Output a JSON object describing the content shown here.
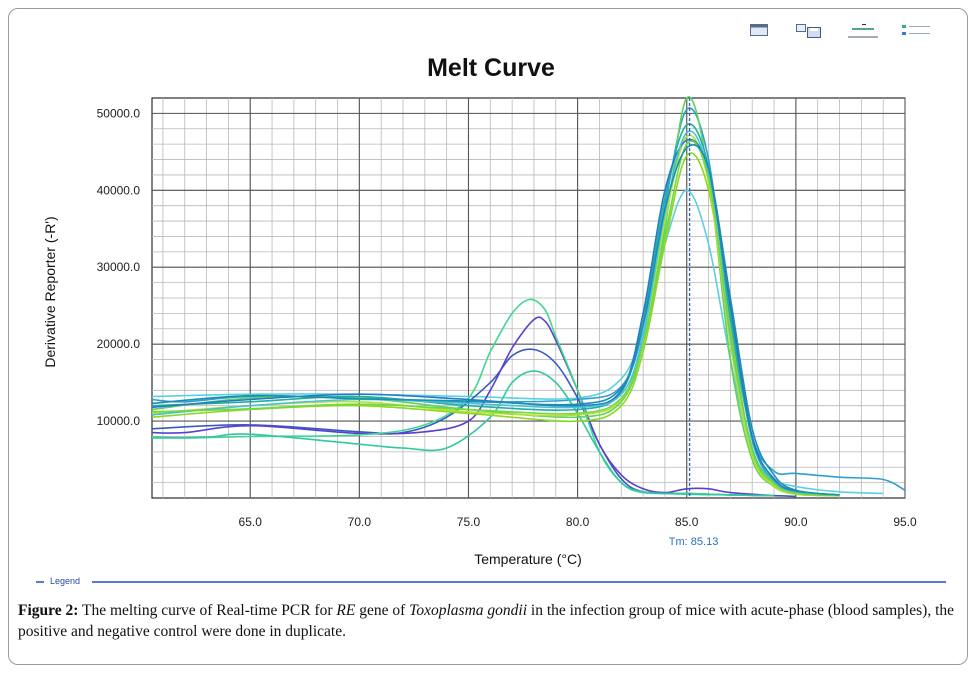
{
  "toolbar": {
    "icons": [
      "window-icon",
      "save-icon",
      "chart-options-icon",
      "legend-toggle-icon"
    ]
  },
  "chart_data": {
    "type": "line",
    "title": "Melt Curve",
    "xlabel": "Temperature (°C)",
    "ylabel": "Derivative Reporter (-R')",
    "xlim": [
      60.5,
      95.0
    ],
    "ylim": [
      0,
      52000
    ],
    "x_ticks": [
      "65.0",
      "70.0",
      "75.0",
      "80.0",
      "85.0",
      "90.0",
      "95.0"
    ],
    "y_ticks": [
      "10000.0",
      "20000.0",
      "30000.0",
      "40000.0",
      "50000.0"
    ],
    "grid": true,
    "annotation": {
      "label": "Tm: 85.13",
      "x": 85.13
    },
    "series": [
      {
        "color": "#2f9fd0",
        "points": [
          [
            60.5,
            12800
          ],
          [
            62,
            12500
          ],
          [
            65,
            13200
          ],
          [
            70,
            13000
          ],
          [
            75,
            12500
          ],
          [
            80,
            12800
          ],
          [
            82,
            14500
          ],
          [
            83,
            22000
          ],
          [
            84,
            38000
          ],
          [
            85,
            50500
          ],
          [
            86,
            44000
          ],
          [
            87,
            23000
          ],
          [
            88,
            8000
          ],
          [
            89,
            3500
          ],
          [
            90,
            3200
          ],
          [
            92,
            2700
          ],
          [
            94,
            2400
          ],
          [
            95,
            1000
          ]
        ]
      },
      {
        "color": "#5ad0e0",
        "points": [
          [
            60.5,
            13200
          ],
          [
            65,
            13500
          ],
          [
            70,
            13500
          ],
          [
            75,
            13200
          ],
          [
            80,
            13000
          ],
          [
            82,
            15500
          ],
          [
            83,
            22000
          ],
          [
            84,
            33000
          ],
          [
            85,
            40000
          ],
          [
            86,
            33000
          ],
          [
            87,
            18000
          ],
          [
            88,
            6000
          ],
          [
            89,
            2500
          ],
          [
            90,
            1500
          ],
          [
            92,
            800
          ],
          [
            94,
            600
          ]
        ]
      },
      {
        "color": "#3a5ac0",
        "points": [
          [
            60.5,
            9000
          ],
          [
            65,
            9500
          ],
          [
            70,
            8600
          ],
          [
            72,
            8500
          ],
          [
            74,
            10500
          ],
          [
            76,
            15000
          ],
          [
            77,
            18500
          ],
          [
            78,
            19300
          ],
          [
            79,
            17500
          ],
          [
            80,
            13000
          ],
          [
            81,
            7000
          ],
          [
            82,
            2500
          ],
          [
            83,
            800
          ],
          [
            85,
            600
          ],
          [
            87,
            400
          ],
          [
            89,
            300
          ],
          [
            90,
            200
          ]
        ]
      },
      {
        "color": "#5a40d0",
        "points": [
          [
            60.5,
            8500
          ],
          [
            62,
            8500
          ],
          [
            65,
            9400
          ],
          [
            70,
            8400
          ],
          [
            73,
            8600
          ],
          [
            75,
            10000
          ],
          [
            76,
            14000
          ],
          [
            77,
            19500
          ],
          [
            78,
            23200
          ],
          [
            78.5,
            23000
          ],
          [
            79,
            20500
          ],
          [
            80,
            14000
          ],
          [
            81,
            7000
          ],
          [
            82,
            3000
          ],
          [
            83,
            1200
          ],
          [
            84,
            700
          ],
          [
            85,
            1200
          ],
          [
            86,
            1200
          ],
          [
            87,
            700
          ],
          [
            89,
            300
          ]
        ]
      },
      {
        "color": "#40d890",
        "points": [
          [
            60.5,
            8000
          ],
          [
            62,
            7800
          ],
          [
            65,
            8000
          ],
          [
            70,
            8200
          ],
          [
            73,
            9500
          ],
          [
            75,
            13000
          ],
          [
            76,
            19000
          ],
          [
            77,
            24000
          ],
          [
            77.8,
            25800
          ],
          [
            78.5,
            24500
          ],
          [
            79,
            21000
          ],
          [
            80,
            14000
          ],
          [
            81,
            6000
          ],
          [
            82,
            2000
          ],
          [
            83,
            700
          ],
          [
            85,
            600
          ],
          [
            87,
            400
          ],
          [
            89,
            300
          ]
        ]
      },
      {
        "color": "#30c8a0",
        "points": [
          [
            60.5,
            7800
          ],
          [
            63,
            7900
          ],
          [
            65,
            8300
          ],
          [
            70,
            7000
          ],
          [
            72,
            6500
          ],
          [
            74,
            6500
          ],
          [
            76,
            10500
          ],
          [
            77,
            15000
          ],
          [
            78,
            16500
          ],
          [
            79,
            15000
          ],
          [
            80,
            11000
          ],
          [
            81,
            6000
          ],
          [
            82,
            2000
          ],
          [
            83,
            800
          ],
          [
            85,
            500
          ],
          [
            87,
            400
          ],
          [
            89,
            300
          ]
        ]
      },
      {
        "color": "#60d060",
        "points": [
          [
            60.5,
            11500
          ],
          [
            65,
            13000
          ],
          [
            70,
            13000
          ],
          [
            75,
            11500
          ],
          [
            80,
            10500
          ],
          [
            82,
            12500
          ],
          [
            83,
            20000
          ],
          [
            84,
            35000
          ],
          [
            85,
            52000
          ],
          [
            86,
            42000
          ],
          [
            87,
            18000
          ],
          [
            88,
            5000
          ],
          [
            89,
            1500
          ],
          [
            90,
            500
          ],
          [
            92,
            300
          ]
        ]
      },
      {
        "color": "#8ad820",
        "points": [
          [
            60.5,
            10500
          ],
          [
            65,
            11500
          ],
          [
            70,
            12000
          ],
          [
            75,
            11000
          ],
          [
            80,
            10000
          ],
          [
            82,
            12000
          ],
          [
            83,
            19000
          ],
          [
            84,
            33000
          ],
          [
            85,
            44500
          ],
          [
            86,
            40000
          ],
          [
            87,
            22000
          ],
          [
            88,
            6000
          ],
          [
            89,
            1800
          ],
          [
            90,
            600
          ],
          [
            92,
            300
          ]
        ]
      },
      {
        "color": "#b8e030",
        "points": [
          [
            60.5,
            11000
          ],
          [
            65,
            12000
          ],
          [
            70,
            12500
          ],
          [
            75,
            11200
          ],
          [
            80,
            10800
          ],
          [
            82,
            12800
          ],
          [
            83,
            20500
          ],
          [
            84,
            36000
          ],
          [
            85,
            47000
          ],
          [
            86,
            41000
          ],
          [
            87,
            20000
          ],
          [
            88,
            5500
          ],
          [
            89,
            1600
          ],
          [
            90,
            500
          ],
          [
            92,
            300
          ]
        ]
      },
      {
        "color": "#20b0a0",
        "points": [
          [
            60.5,
            12000
          ],
          [
            65,
            12500
          ],
          [
            70,
            13200
          ],
          [
            75,
            12000
          ],
          [
            80,
            11500
          ],
          [
            82,
            13800
          ],
          [
            83,
            23000
          ],
          [
            84,
            39000
          ],
          [
            85,
            48500
          ],
          [
            86,
            43000
          ],
          [
            87,
            24000
          ],
          [
            88,
            7500
          ],
          [
            89,
            2200
          ],
          [
            90,
            800
          ],
          [
            92,
            400
          ]
        ]
      },
      {
        "color": "#2878c8",
        "points": [
          [
            60.5,
            11800
          ],
          [
            65,
            12800
          ],
          [
            70,
            13500
          ],
          [
            75,
            12800
          ],
          [
            80,
            12000
          ],
          [
            82,
            14000
          ],
          [
            83,
            24000
          ],
          [
            84,
            40000
          ],
          [
            85,
            46500
          ],
          [
            86,
            42500
          ],
          [
            87,
            25000
          ],
          [
            88,
            8000
          ],
          [
            89,
            2500
          ],
          [
            90,
            900
          ],
          [
            92,
            400
          ]
        ]
      },
      {
        "color": "#48c0d8",
        "points": [
          [
            60.5,
            10800
          ],
          [
            65,
            12000
          ],
          [
            70,
            12800
          ],
          [
            75,
            12300
          ],
          [
            80,
            11800
          ],
          [
            82,
            13500
          ],
          [
            83,
            21000
          ],
          [
            84,
            37000
          ],
          [
            85,
            47500
          ],
          [
            86,
            42000
          ],
          [
            87,
            21000
          ],
          [
            88,
            6500
          ],
          [
            89,
            2000
          ],
          [
            90,
            700
          ],
          [
            92,
            400
          ]
        ]
      },
      {
        "color": "#70d848",
        "points": [
          [
            60.5,
            11200
          ],
          [
            65,
            11600
          ],
          [
            70,
            12200
          ],
          [
            75,
            11500
          ],
          [
            80,
            11000
          ],
          [
            82,
            13000
          ],
          [
            83,
            20000
          ],
          [
            84,
            34000
          ],
          [
            85,
            46000
          ],
          [
            86,
            41500
          ],
          [
            87,
            21500
          ],
          [
            88,
            6200
          ],
          [
            89,
            1900
          ],
          [
            90,
            600
          ],
          [
            92,
            300
          ]
        ]
      },
      {
        "color": "#1a90b0",
        "points": [
          [
            60.5,
            12300
          ],
          [
            65,
            13300
          ],
          [
            70,
            12900
          ],
          [
            75,
            12600
          ],
          [
            80,
            12200
          ],
          [
            82,
            14300
          ],
          [
            83,
            22500
          ],
          [
            84,
            37500
          ],
          [
            85,
            45500
          ],
          [
            86,
            42800
          ],
          [
            87,
            26000
          ],
          [
            88,
            9000
          ],
          [
            89,
            3000
          ],
          [
            90,
            1000
          ],
          [
            92,
            400
          ]
        ]
      }
    ]
  },
  "legend": {
    "label": "Legend"
  },
  "caption": {
    "figure_label": "Figure 2:",
    "text_1": " The melting curve of Real-time PCR for ",
    "gene": "RE",
    "text_2": " gene of ",
    "organism": "Toxoplasma gondii",
    "text_3": " in the infection group of mice with acute-phase (blood samples), the positive and negative control were done in duplicate."
  }
}
